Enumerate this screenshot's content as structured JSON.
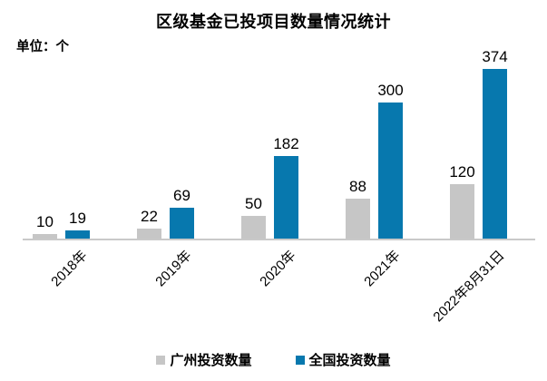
{
  "chart_data": {
    "type": "bar",
    "title": "区级基金已投项目数量情况统计",
    "unit_label": "单位：个",
    "categories": [
      "2018年",
      "2019年",
      "2020年",
      "2021年",
      "2022年8月31日"
    ],
    "series": [
      {
        "key": "guangzhou",
        "name": "广州投资数量",
        "color": "#C6C6C6",
        "values": [
          10,
          22,
          50,
          88,
          120
        ]
      },
      {
        "key": "national",
        "name": "全国投资数量",
        "color": "#0778AE",
        "values": [
          19,
          69,
          182,
          300,
          374
        ]
      }
    ],
    "ylim": [
      0,
      400
    ],
    "grid": false,
    "data_labels": true,
    "legend_position": "bottom",
    "x_label_rotation_deg": 45
  },
  "colors": {
    "background": "#FFFFFF",
    "axis_line": "#C9C9C9",
    "text": "#000000"
  }
}
